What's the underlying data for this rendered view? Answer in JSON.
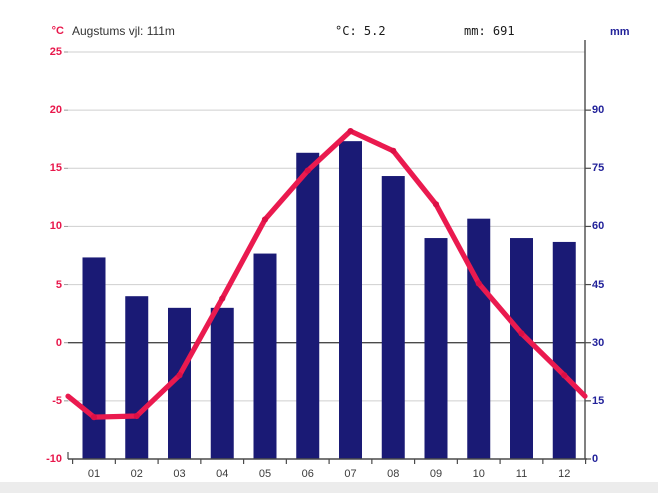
{
  "header": {
    "left_unit": "°C",
    "title": "Augstums vjl: 111m",
    "mean_temp": "°C: 5.2",
    "precip_total": "mm: 691",
    "right_unit": "mm"
  },
  "chart_data": {
    "type": "bar",
    "subtype": "climate-chart-bar-plus-line",
    "categories": [
      "01",
      "02",
      "03",
      "04",
      "05",
      "06",
      "07",
      "08",
      "09",
      "10",
      "11",
      "12"
    ],
    "series": [
      {
        "name": "temperature-c",
        "type": "line",
        "values": [
          -6.4,
          -6.3,
          -2.8,
          3.8,
          10.6,
          14.8,
          18.2,
          16.5,
          11.9,
          5.1,
          0.8,
          -2.8
        ],
        "edge_interp_value": -4.6
      },
      {
        "name": "precipitation-mm",
        "type": "bar",
        "values": [
          52,
          42,
          39,
          39,
          53,
          79,
          82,
          73,
          57,
          62,
          57,
          56
        ]
      }
    ],
    "title": "Augstums vjl: 111m",
    "xlabel": "",
    "ylabel_left": "°C",
    "ylabel_right": "mm",
    "left_axis": {
      "unit": "°C",
      "ticks": [
        25,
        20,
        15,
        10,
        5,
        0,
        -5,
        -10
      ],
      "range": [
        -10,
        25
      ]
    },
    "right_axis": {
      "unit": "mm",
      "ticks": [
        90,
        75,
        60,
        45,
        30,
        15,
        0
      ],
      "range": [
        0,
        105
      ]
    },
    "annotations": {
      "mean_temperature_c": 5.2,
      "total_precipitation_mm": 691
    },
    "legend": "none",
    "grid": "horizontal",
    "colors": {
      "bar": "#1a1a75",
      "line": "#ea1a4f",
      "line_marker": "#dc0f45",
      "left_tick_text": "#e8174b",
      "right_tick_text": "#22229a",
      "gridline": "#cfcfcf",
      "zero_line": "#4a4a4a",
      "axis": "#4a4a4a"
    }
  }
}
